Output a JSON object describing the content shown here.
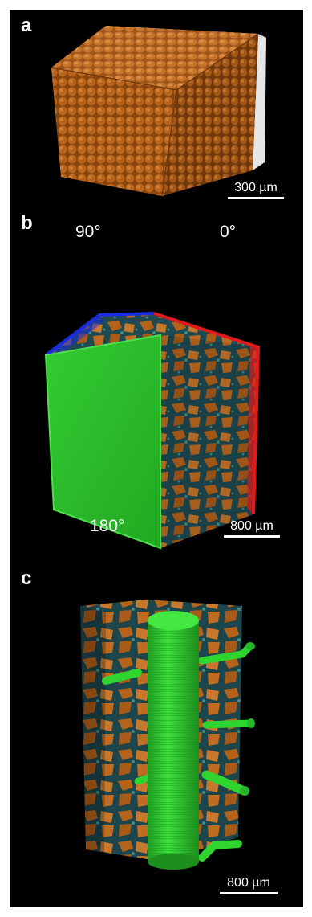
{
  "figure": {
    "colors": {
      "background": "#000000",
      "grain_orange": "#b5621a",
      "grain_light": "#d08035",
      "pore_teal": "#1f4f57",
      "root_green": "#2fd42f",
      "axis_red": "#e01a1a",
      "axis_blue": "#1a2de0",
      "axis_green": "#22c422",
      "bbox_white": "#e6e6e6"
    },
    "panel_a": {
      "label": "a",
      "scale_bar": "300 µm"
    },
    "panel_b": {
      "label": "b",
      "angle_top_left": "90°",
      "angle_top_right": "0°",
      "angle_bottom_left": "180°",
      "scale_bar": "800 µm"
    },
    "panel_c": {
      "label": "c",
      "scale_bar": "800 µm"
    }
  }
}
